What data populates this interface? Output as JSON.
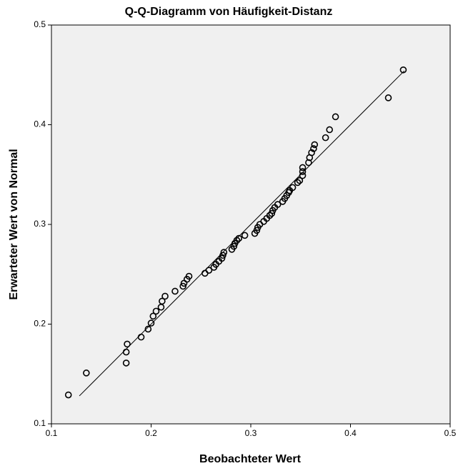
{
  "chart_data": {
    "type": "scatter",
    "title": "Q-Q-Diagramm von Häufigkeit-Distanz",
    "xlabel": "Beobachteter Wert",
    "ylabel": "Erwarteter Wert von Normal",
    "xlim": [
      0.1,
      0.5
    ],
    "ylim": [
      0.1,
      0.5
    ],
    "xticks": [
      0.1,
      0.2,
      0.3,
      0.4,
      0.5
    ],
    "yticks": [
      0.1,
      0.2,
      0.3,
      0.4,
      0.5
    ],
    "color": "#000000",
    "background": "#f0f0f0",
    "x": [
      0.117,
      0.135,
      0.176,
      0.175,
      0.175,
      0.19,
      0.197,
      0.2,
      0.202,
      0.205,
      0.21,
      0.211,
      0.214,
      0.224,
      0.232,
      0.233,
      0.236,
      0.238,
      0.254,
      0.258,
      0.263,
      0.265,
      0.268,
      0.271,
      0.272,
      0.273,
      0.281,
      0.283,
      0.284,
      0.286,
      0.288,
      0.294,
      0.304,
      0.306,
      0.307,
      0.309,
      0.313,
      0.316,
      0.319,
      0.321,
      0.322,
      0.324,
      0.327,
      0.332,
      0.334,
      0.336,
      0.338,
      0.339,
      0.342,
      0.347,
      0.349,
      0.352,
      0.352,
      0.352,
      0.358,
      0.359,
      0.361,
      0.363,
      0.364,
      0.375,
      0.379,
      0.385,
      0.438,
      0.453
    ],
    "values": [
      0.129,
      0.151,
      0.18,
      0.172,
      0.161,
      0.187,
      0.195,
      0.201,
      0.208,
      0.213,
      0.217,
      0.223,
      0.228,
      0.233,
      0.238,
      0.241,
      0.245,
      0.248,
      0.251,
      0.254,
      0.257,
      0.26,
      0.263,
      0.266,
      0.269,
      0.272,
      0.275,
      0.278,
      0.281,
      0.284,
      0.286,
      0.289,
      0.291,
      0.294,
      0.297,
      0.3,
      0.303,
      0.306,
      0.309,
      0.311,
      0.314,
      0.317,
      0.32,
      0.323,
      0.326,
      0.329,
      0.332,
      0.334,
      0.337,
      0.342,
      0.344,
      0.349,
      0.353,
      0.357,
      0.362,
      0.367,
      0.372,
      0.376,
      0.38,
      0.387,
      0.395,
      0.408,
      0.427,
      0.455
    ],
    "reference_line": {
      "x": [
        0.128,
        0.454
      ],
      "y": [
        0.128,
        0.454
      ]
    }
  }
}
